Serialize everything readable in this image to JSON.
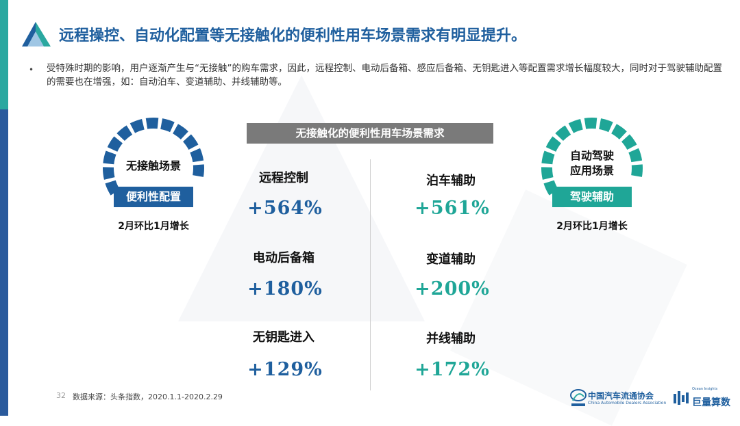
{
  "header": {
    "title": "远程操控、自动化配置等无接触化的便利性用车场景需求有明显提升。"
  },
  "intro": {
    "bullet": "•",
    "text": "受特殊时期的影响，用户逐渐产生与“无接触”的购车需求，因此，远程控制、电动后备箱、感应后备箱、无钥匙进入等配置需求增长幅度较大，同时对于驾驶辅助配置的需要也在增强，如：自动泊车、变道辅助、并线辅助等。"
  },
  "center": {
    "banner": "无接触化的便利性用车场景需求"
  },
  "left_badge": {
    "title": "无接触场景",
    "bar": "便利性配置",
    "note": "2月环比1月增长",
    "color": "#1f5f9e"
  },
  "right_badge": {
    "title_line1": "自动驾驶",
    "title_line2": "应用场景",
    "bar": "驾驶辅助",
    "note": "2月环比1月增长",
    "color": "#1fa697"
  },
  "left_items": [
    {
      "label": "远程控制",
      "value": "+564%"
    },
    {
      "label": "电动后备箱",
      "value": "+180%"
    },
    {
      "label": "无钥匙进入",
      "value": "+129%"
    }
  ],
  "right_items": [
    {
      "label": "泊车辅助",
      "value": "+561%"
    },
    {
      "label": "变道辅助",
      "value": "+200%"
    },
    {
      "label": "并线辅助",
      "value": "+172%"
    }
  ],
  "footer": {
    "page_number": "32",
    "source": "数据来源：头条指数，2020.1.1-2020.2.29",
    "logo1_text": "中国汽车流通协会",
    "logo1_sub": "China Automobile Dealers Association",
    "logo2_text": "巨量算数",
    "logo2_sub": "Ocean Insights"
  },
  "colors": {
    "accent_blue": "#1f5f9e",
    "accent_teal": "#1fa697",
    "banner_gray": "#7a7a7a"
  }
}
